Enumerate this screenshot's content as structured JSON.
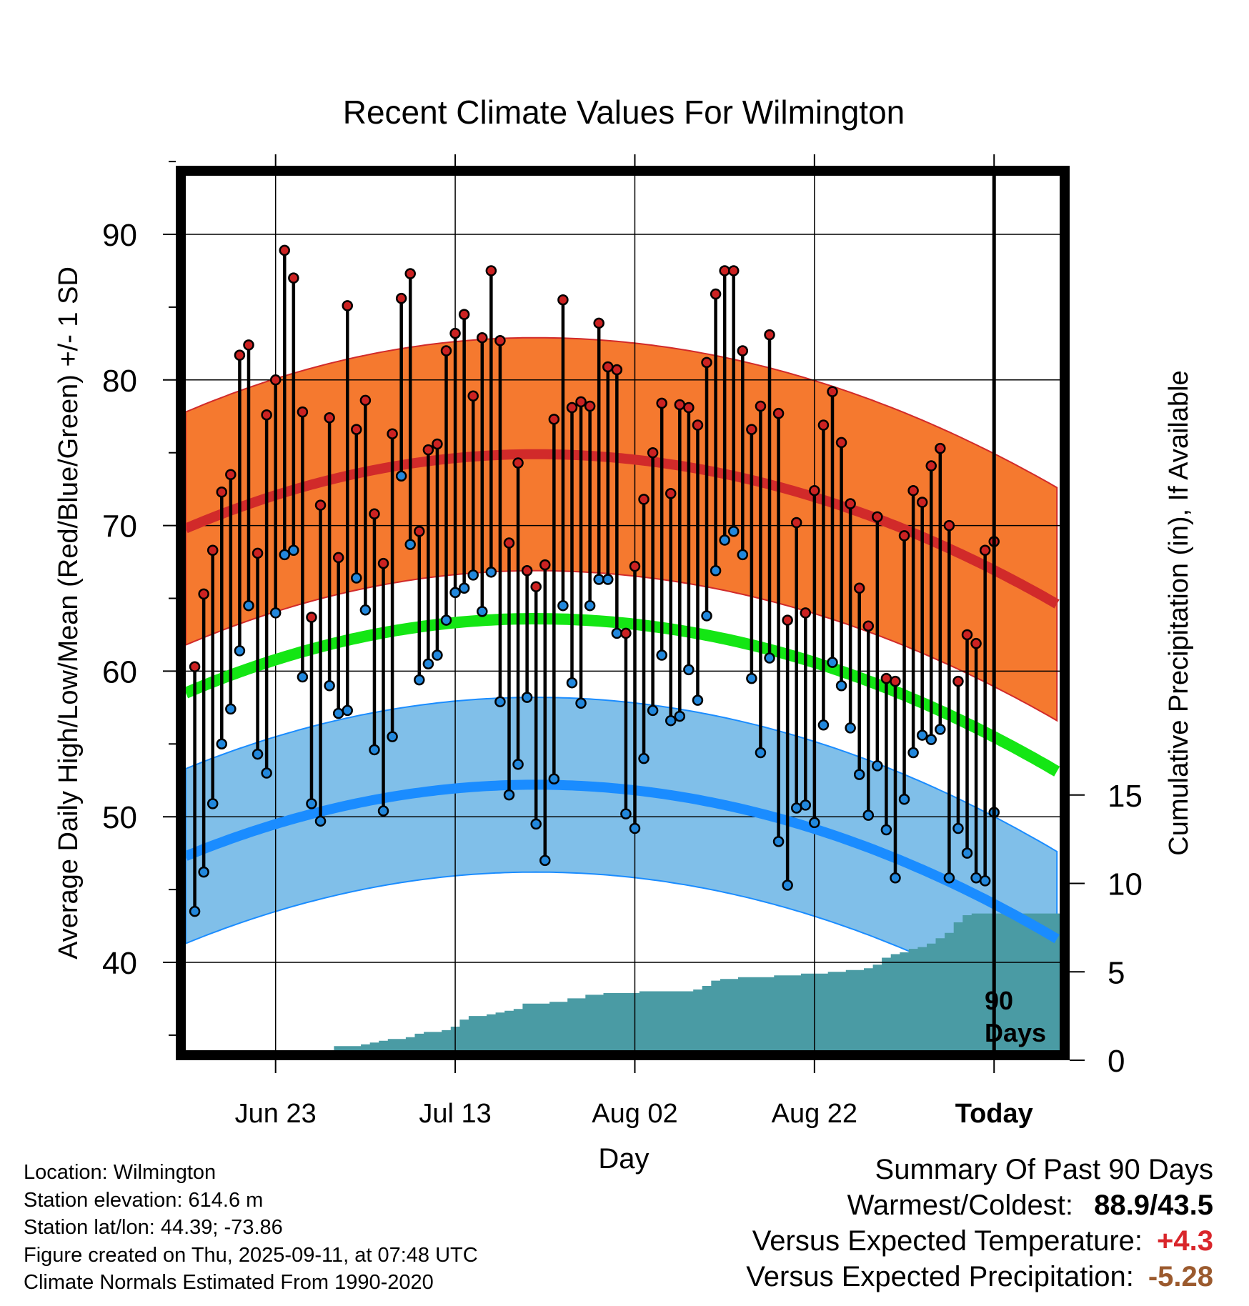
{
  "chart_data": {
    "type": "line",
    "title": "Recent Climate Values For Wilmington",
    "xlabel": "Day",
    "ylabel_left": "Average Daily High/Low/Mean (Red/Blue/Green) +/- 1 SD",
    "ylabel_right": "Cumulative Precipitation (in), If Available",
    "x_tick_labels": [
      "Jun 23",
      "Jul 13",
      "Aug 02",
      "Aug 22",
      "Today"
    ],
    "x_tick_days": [
      10,
      30,
      50,
      70,
      90
    ],
    "y_ticks_left": [
      40,
      50,
      60,
      70,
      80,
      90
    ],
    "y_ticks_right": [
      0,
      5,
      10,
      15
    ],
    "ylim_left": [
      34.0,
      95.0
    ],
    "ylim_right": [
      0,
      15
    ],
    "today_marker": {
      "day": 90,
      "label_line1": "90",
      "label_line2": "Days"
    },
    "normal_high": {
      "start": 69.8,
      "peak": 74.9,
      "end": 64.5
    },
    "normal_high_sd": 8.0,
    "normal_low": {
      "start": 47.3,
      "peak": 52.2,
      "end": 41.5
    },
    "normal_low_sd": 6.0,
    "normal_mean": {
      "start": 58.5,
      "peak": 63.6,
      "end": 53.0
    },
    "daily_high": [
      60.3,
      65.3,
      68.3,
      72.3,
      73.5,
      81.7,
      82.4,
      68.1,
      77.6,
      80.0,
      88.9,
      87.0,
      77.8,
      63.7,
      71.4,
      77.4,
      67.8,
      85.1,
      76.6,
      78.6,
      70.8,
      67.4,
      76.3,
      85.6,
      87.3,
      69.6,
      75.2,
      75.6,
      82.0,
      83.2,
      84.5,
      78.9,
      82.9,
      87.5,
      82.7,
      68.8,
      74.3,
      66.9,
      65.8,
      67.3,
      77.3,
      85.5,
      78.1,
      78.5,
      78.2,
      83.9,
      80.9,
      80.7,
      62.6,
      67.2,
      71.8,
      75.0,
      78.4,
      72.2,
      78.3,
      78.1,
      76.9,
      81.2,
      85.9,
      87.5,
      87.5,
      82.0,
      76.6,
      78.2,
      83.1,
      77.7,
      63.5,
      70.2,
      64.0,
      72.4,
      76.9,
      79.2,
      75.7,
      71.5,
      65.7,
      63.1,
      70.6,
      59.5,
      59.3,
      69.3,
      72.4,
      71.6,
      74.1,
      75.3,
      70.0,
      59.3,
      62.5,
      61.9,
      68.3,
      68.9
    ],
    "daily_low": [
      43.5,
      46.2,
      50.9,
      55.0,
      57.4,
      61.4,
      64.5,
      54.3,
      53.0,
      64.0,
      68.0,
      68.3,
      59.6,
      50.9,
      49.7,
      59.0,
      57.1,
      57.3,
      66.4,
      64.2,
      54.6,
      50.4,
      55.5,
      73.4,
      68.7,
      59.4,
      60.5,
      61.1,
      63.5,
      65.4,
      65.7,
      66.6,
      64.1,
      66.8,
      57.9,
      51.5,
      53.6,
      58.2,
      49.5,
      47.0,
      52.6,
      64.5,
      59.2,
      57.8,
      64.5,
      66.3,
      66.3,
      62.6,
      50.2,
      49.2,
      54.0,
      57.3,
      61.1,
      56.6,
      56.9,
      60.1,
      58.0,
      63.8,
      66.9,
      69.0,
      69.6,
      68.0,
      59.5,
      54.4,
      60.9,
      48.3,
      45.3,
      50.6,
      50.8,
      49.6,
      56.3,
      60.6,
      59.0,
      56.1,
      52.9,
      50.1,
      53.5,
      49.1,
      45.8,
      51.2,
      54.4,
      55.6,
      55.3,
      56.0,
      45.8,
      49.2,
      47.5,
      45.8,
      45.6,
      50.3
    ],
    "cumulative_precip": [
      0.0,
      0.0,
      0.0,
      0.0,
      0.0,
      0.0,
      0.0,
      0.0,
      0.0,
      0.3,
      0.4,
      0.4,
      0.5,
      0.5,
      0.5,
      0.5,
      0.8,
      0.8,
      0.8,
      0.9,
      1.0,
      1.1,
      1.2,
      1.2,
      1.3,
      1.5,
      1.6,
      1.6,
      1.7,
      1.9,
      2.3,
      2.5,
      2.5,
      2.6,
      2.7,
      2.8,
      2.9,
      3.2,
      3.2,
      3.2,
      3.3,
      3.3,
      3.5,
      3.5,
      3.7,
      3.7,
      3.8,
      3.8,
      3.8,
      3.8,
      3.9,
      3.9,
      3.9,
      3.9,
      3.9,
      3.9,
      4.0,
      4.2,
      4.5,
      4.6,
      4.6,
      4.7,
      4.7,
      4.7,
      4.7,
      4.8,
      4.8,
      4.8,
      4.9,
      4.9,
      4.9,
      5.0,
      5.0,
      5.1,
      5.1,
      5.2,
      5.4,
      5.8,
      6.0,
      6.1,
      6.3,
      6.4,
      6.6,
      6.9,
      7.2,
      7.8,
      8.2,
      8.3,
      8.3,
      8.3
    ]
  },
  "location_info": [
    "Location: Wilmington",
    "Station elevation: 614.6 m",
    "Station lat/lon: 44.39; -73.86",
    "Figure created on Thu, 2025-09-11, at 07:48 UTC",
    "Climate Normals Estimated From 1990-2020"
  ],
  "summary": {
    "heading": "Summary Of Past 90 Days",
    "warmest_label": "Warmest/Coldest:",
    "warmest_value": "88.9/43.5",
    "temp_label": "Versus Expected Temperature:",
    "temp_value": "+4.3",
    "temp_color": "#d9262b",
    "precip_label": "Versus Expected Precipitation:",
    "precip_value": "-5.28",
    "precip_color": "#9b5a2e"
  },
  "colors": {
    "high_band": "#f5792f",
    "high_line": "#d12a2a",
    "low_band": "#80bfe9",
    "low_line": "#1a8cff",
    "mean_line": "#14e614",
    "precip_fill": "#4a9ba4",
    "high_dot": "#cc2222",
    "low_dot": "#2288dd"
  }
}
